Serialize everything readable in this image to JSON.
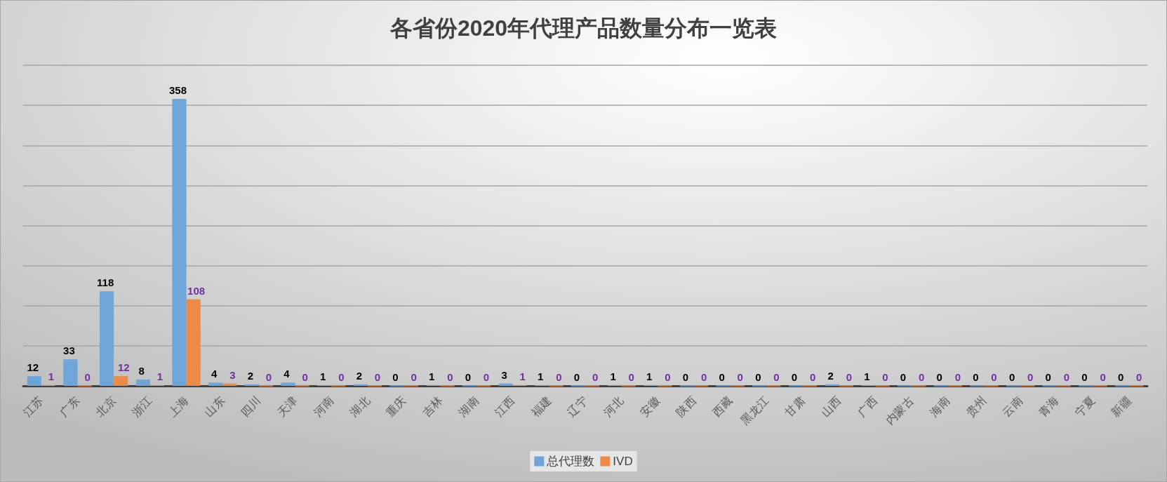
{
  "chart_data": {
    "type": "bar",
    "title": "各省份2020年代理产品数量分布一览表",
    "categories": [
      "江苏",
      "广东",
      "北京",
      "浙江",
      "上海",
      "山东",
      "四川",
      "天津",
      "河南",
      "湖北",
      "重庆",
      "吉林",
      "湖南",
      "江西",
      "福建",
      "辽宁",
      "河北",
      "安徽",
      "陕西",
      "西藏",
      "黑龙江",
      "甘肃",
      "山西",
      "广西",
      "内蒙古",
      "海南",
      "贵州",
      "云南",
      "青海",
      "宁夏",
      "新疆"
    ],
    "series": [
      {
        "name": "总代理数",
        "color": "#6fa5d8",
        "values": [
          12,
          33,
          118,
          8,
          358,
          4,
          2,
          4,
          1,
          2,
          0,
          1,
          0,
          3,
          1,
          0,
          1,
          1,
          0,
          0,
          0,
          0,
          2,
          1,
          0,
          0,
          0,
          0,
          0,
          0,
          0
        ]
      },
      {
        "name": "IVD",
        "color": "#ec8a48",
        "values": [
          1,
          0,
          12,
          1,
          108,
          3,
          0,
          0,
          0,
          0,
          0,
          0,
          0,
          1,
          0,
          0,
          0,
          0,
          0,
          0,
          0,
          0,
          0,
          0,
          0,
          0,
          0,
          0,
          0,
          0,
          0
        ]
      }
    ],
    "ylim": [
      0,
      400
    ],
    "yticks": [
      {
        "value": 0,
        "label": null
      },
      {
        "value": 50,
        "label": null
      },
      {
        "value": 100,
        "label": null
      },
      {
        "value": 150,
        "label": null
      },
      {
        "value": 200,
        "label": null
      },
      {
        "value": 250,
        "label": null
      },
      {
        "value": 300,
        "label": null
      },
      {
        "value": 350,
        "label": null
      },
      {
        "value": 400,
        "label": null
      }
    ],
    "grid": "y",
    "tick_labels": "x",
    "legend": "bottom",
    "data_labels": true
  }
}
